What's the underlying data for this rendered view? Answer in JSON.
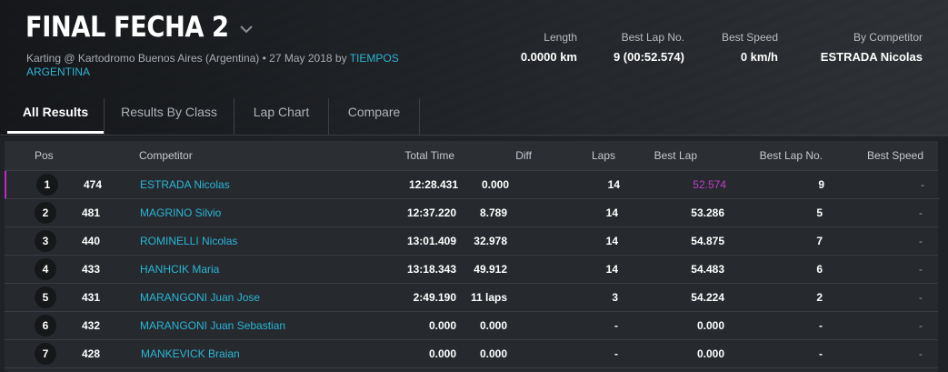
{
  "header": {
    "title": "FINAL FECHA 2",
    "subtitle_prefix": "Karting @ Kartodromo Buenos Aires (Argentina) • 27 May 2018 by ",
    "subtitle_link": "TIEMPOS ARGENTINA"
  },
  "stats": [
    {
      "label": "Length",
      "value": "0.0000 km"
    },
    {
      "label": "Best Lap No.",
      "value": "9 (00:52.574)"
    },
    {
      "label": "Best Speed",
      "value": "0 km/h"
    },
    {
      "label": "By Competitor",
      "value": "ESTRADA Nicolas"
    }
  ],
  "tabs": [
    "All Results",
    "Results By Class",
    "Lap Chart",
    "Compare"
  ],
  "columns": {
    "pos": "Pos",
    "competitor": "Competitor",
    "total_time": "Total Time",
    "diff": "Diff",
    "laps": "Laps",
    "best_lap": "Best Lap",
    "best_lap_no": "Best Lap No.",
    "best_speed": "Best Speed"
  },
  "rows": [
    {
      "pos": "1",
      "num": "474",
      "name": "ESTRADA Nicolas",
      "total": "12:28.431",
      "diff": "0.000",
      "laps": "14",
      "best_lap": "52.574",
      "best_lap_no": "9",
      "best_speed": "-"
    },
    {
      "pos": "2",
      "num": "481",
      "name": "MAGRINO Silvio",
      "total": "12:37.220",
      "diff": "8.789",
      "laps": "14",
      "best_lap": "53.286",
      "best_lap_no": "5",
      "best_speed": "-"
    },
    {
      "pos": "3",
      "num": "440",
      "name": "ROMINELLI Nicolas",
      "total": "13:01.409",
      "diff": "32.978",
      "laps": "14",
      "best_lap": "54.875",
      "best_lap_no": "7",
      "best_speed": "-"
    },
    {
      "pos": "4",
      "num": "433",
      "name": "HANHCIK Maria",
      "total": "13:18.343",
      "diff": "49.912",
      "laps": "14",
      "best_lap": "54.483",
      "best_lap_no": "6",
      "best_speed": "-"
    },
    {
      "pos": "5",
      "num": "431",
      "name": "MARANGONI Juan Jose",
      "total": "2:49.190",
      "diff": "11 laps",
      "laps": "3",
      "best_lap": "54.224",
      "best_lap_no": "2",
      "best_speed": "-"
    },
    {
      "pos": "6",
      "num": "432",
      "name": "MARANGONI Juan Sebastian",
      "total": "0.000",
      "diff": "0.000",
      "laps": "-",
      "best_lap": "0.000",
      "best_lap_no": "-",
      "best_speed": "-"
    },
    {
      "pos": "7",
      "num": "428",
      "name": "MANKEVICK Braian",
      "total": "0.000",
      "diff": "0.000",
      "laps": "-",
      "best_lap": "0.000",
      "best_lap_no": "-",
      "best_speed": "-"
    }
  ],
  "colors": {
    "accent_link": "#2ab5d6",
    "best_lap_highlight": "#c33ccb",
    "background": "#1f2226"
  }
}
